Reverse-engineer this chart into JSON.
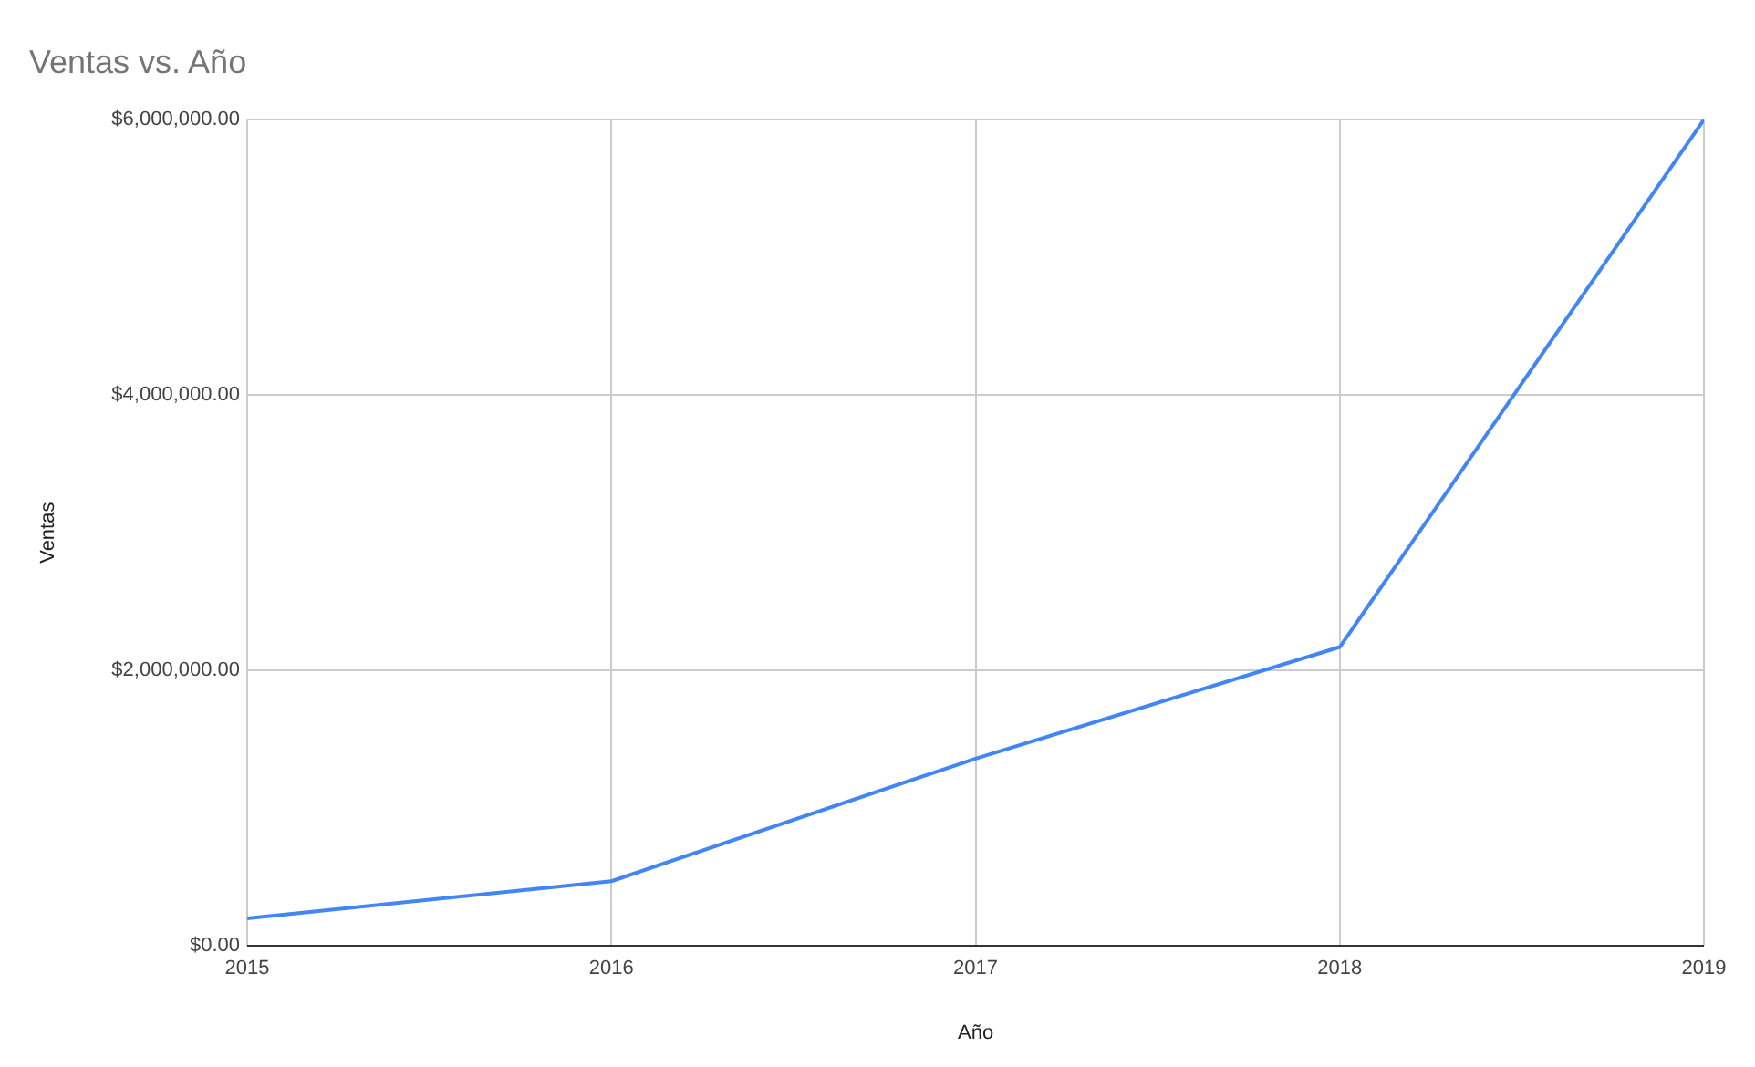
{
  "chart_data": {
    "type": "line",
    "title": "Ventas vs. Año",
    "xlabel": "Año",
    "ylabel": "Ventas",
    "x": [
      2015,
      2016,
      2017,
      2018,
      2019
    ],
    "series": [
      {
        "color": "#4285f4",
        "values": [
          200000,
          470000,
          1360000,
          2170000,
          6000000
        ]
      }
    ],
    "xlim": [
      2015,
      2019
    ],
    "xticks": [
      2015,
      2016,
      2017,
      2018,
      2019
    ],
    "ylim": [
      0,
      6000000
    ],
    "yticks": [
      {
        "value": 0,
        "label": "$0.00"
      },
      {
        "value": 2000000,
        "label": "$2,000,000.00"
      },
      {
        "value": 4000000,
        "label": "$4,000,000.00"
      },
      {
        "value": 6000000,
        "label": "$6,000,000.00"
      }
    ],
    "grid": true,
    "legend": false,
    "marker": "none",
    "line_style": "solid"
  }
}
